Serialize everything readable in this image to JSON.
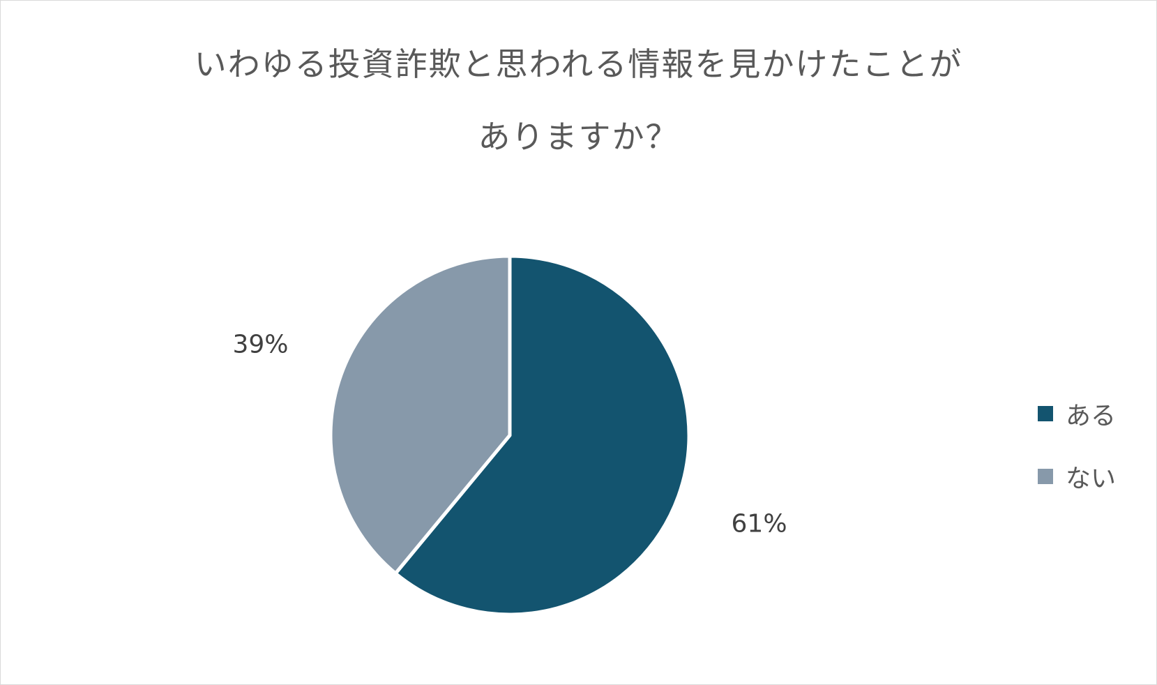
{
  "chart_data": {
    "type": "pie",
    "title_line1": "いわゆる投資詐欺と思われる情報を見かけたことが",
    "title_line2": "ありますか？",
    "slices": [
      {
        "name": "ある",
        "value": 61,
        "label": "61%",
        "color": "#13546f"
      },
      {
        "name": "ない",
        "value": 39,
        "label": "39%",
        "color": "#8799aa"
      }
    ],
    "legend_placement": "right"
  }
}
